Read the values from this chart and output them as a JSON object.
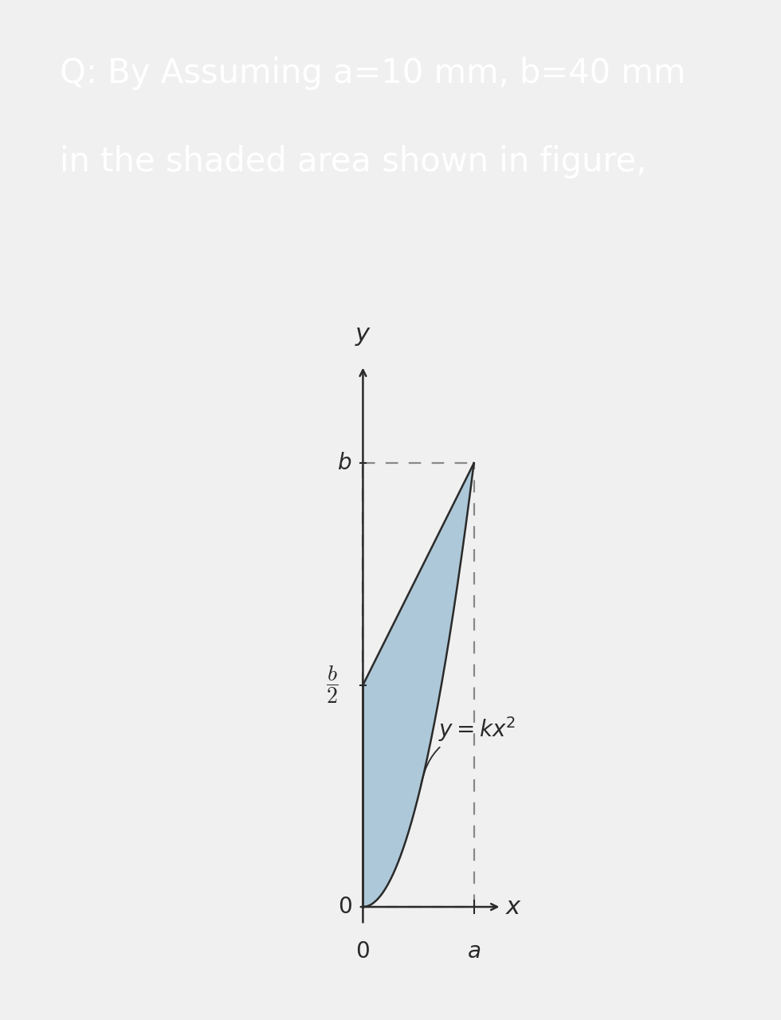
{
  "header_text_line1": "Q: By Assuming a=10 mm, b=40 mm",
  "header_text_line2": "in the shaded area shown in figure,",
  "header_bg_color": "#6b4fbb",
  "header_text_color": "#ffffff",
  "bg_color": "#f0f0f0",
  "plot_bg_color": "#ffffff",
  "shaded_color": "#adc8d8",
  "curve_color": "#2a2a2a",
  "dashed_color": "#888888",
  "axis_color": "#2a2a2a",
  "label_color": "#2a2a2a",
  "a_val": 10,
  "b_val": 40,
  "tick_label_fontsize": 20,
  "axis_label_fontsize": 22,
  "eq_fontsize": 20,
  "header_fontsize": 30
}
